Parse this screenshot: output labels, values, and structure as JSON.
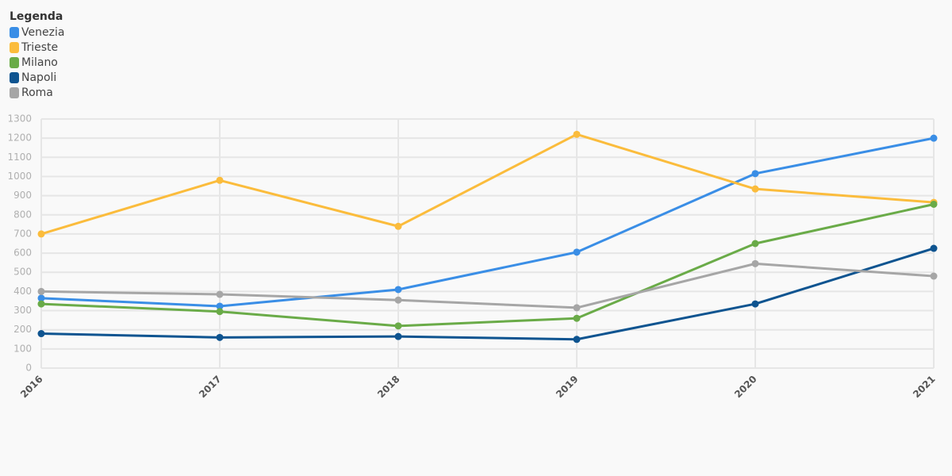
{
  "chart_data": {
    "type": "line",
    "legend_title": "Legenda",
    "legend_position": "top-left",
    "categories": [
      "2016",
      "2017",
      "2018",
      "2019",
      "2020",
      "2021"
    ],
    "series": [
      {
        "name": "Venezia",
        "color": "#3a8ee6",
        "values": [
          365,
          323,
          410,
          605,
          1015,
          1200
        ]
      },
      {
        "name": "Trieste",
        "color": "#fbbc3c",
        "values": [
          700,
          980,
          740,
          1220,
          935,
          865
        ]
      },
      {
        "name": "Milano",
        "color": "#6aab48",
        "values": [
          335,
          295,
          220,
          260,
          650,
          855
        ]
      },
      {
        "name": "Napoli",
        "color": "#0e5490",
        "values": [
          180,
          160,
          165,
          150,
          335,
          625
        ]
      },
      {
        "name": "Roma",
        "color": "#a6a6a6",
        "values": [
          400,
          385,
          355,
          315,
          545,
          480
        ]
      }
    ],
    "ylim": [
      0,
      1300
    ],
    "yticks": [
      0,
      100,
      200,
      300,
      400,
      500,
      600,
      700,
      800,
      900,
      1000,
      1100,
      1200,
      1300
    ],
    "grid": true
  }
}
